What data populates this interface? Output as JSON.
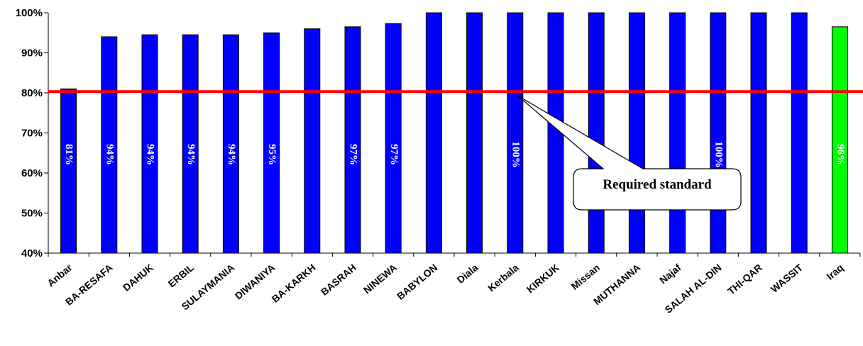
{
  "chart_data": {
    "type": "bar",
    "categories": [
      "Anbar",
      "BA-RESAFA",
      "DAHUK",
      "ERBIL",
      "SULAYMANIA",
      "DIWANIYA",
      "BA-KARKH",
      "BASRAH",
      "NINEWA",
      "BABYLON",
      "Diala",
      "Kerbala",
      "KIRKUK",
      "Missan",
      "MUTHANNA",
      "Najaf",
      "SALAH AL-DIN",
      "THI-QAR",
      "WASSIT",
      "Iraq"
    ],
    "values": [
      81,
      94,
      94.5,
      94.5,
      94.5,
      95,
      96,
      96.5,
      97.3,
      100,
      100,
      100,
      100,
      100,
      100,
      100,
      100,
      100,
      100,
      96.5
    ],
    "data_labels": [
      "81%",
      "94%",
      "94%",
      "94%",
      "94%",
      "95%",
      "",
      "97%",
      "97%",
      "",
      "",
      "100%",
      "",
      "",
      "",
      "",
      "100%",
      "",
      "",
      "96%"
    ],
    "bar_colors": [
      "#0000ff",
      "#0000ff",
      "#0000ff",
      "#0000ff",
      "#0000ff",
      "#0000ff",
      "#0000ff",
      "#0000ff",
      "#0000ff",
      "#0000ff",
      "#0000ff",
      "#0000ff",
      "#0000ff",
      "#0000ff",
      "#0000ff",
      "#0000ff",
      "#0000ff",
      "#0000ff",
      "#0000ff",
      "#00ff00"
    ],
    "ylim": [
      40,
      100
    ],
    "yticks": [
      40,
      50,
      60,
      70,
      80,
      90,
      100
    ],
    "ytick_labels": [
      "40%",
      "50%",
      "60%",
      "70%",
      "80%",
      "90%",
      "100%"
    ],
    "reference_line": {
      "value": 80.3,
      "color": "#ff0000"
    },
    "annotation": {
      "text": "Required standard",
      "points_to_category": "Kerbala",
      "points_to_value": 80.3
    },
    "title": "",
    "xlabel": "",
    "ylabel": "",
    "grid": false,
    "legend": "none"
  }
}
